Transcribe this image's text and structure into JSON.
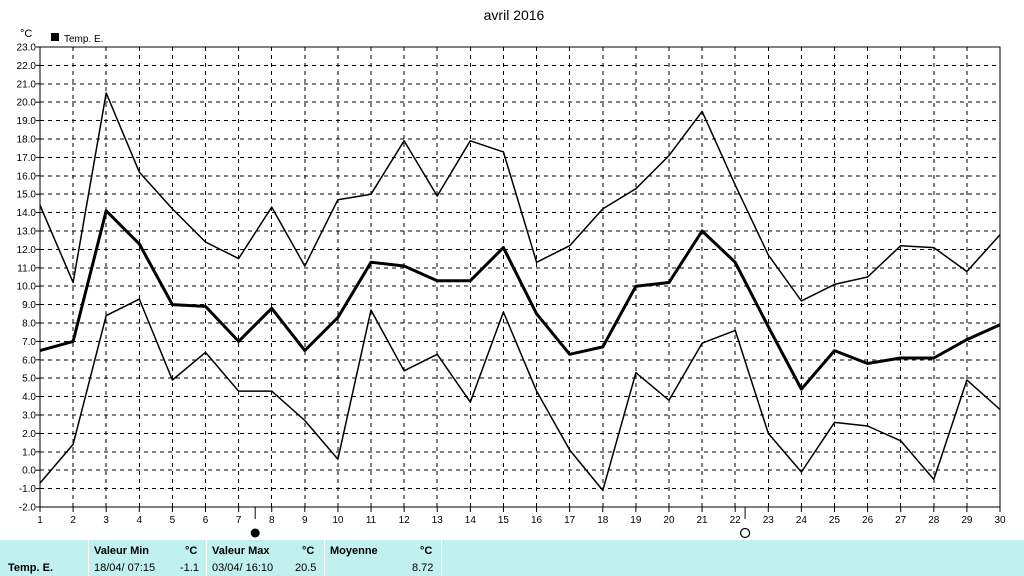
{
  "chart_data": {
    "type": "line",
    "title": "avril 2016",
    "ylabel": "°C",
    "legend": {
      "label": "Temp. E.",
      "position": "top-left"
    },
    "x": [
      1,
      2,
      3,
      4,
      5,
      6,
      7,
      8,
      9,
      10,
      11,
      12,
      13,
      14,
      15,
      16,
      17,
      18,
      19,
      20,
      21,
      22,
      23,
      24,
      25,
      26,
      27,
      28,
      29,
      30
    ],
    "xlim": [
      1,
      30
    ],
    "ylim": [
      -2,
      23
    ],
    "yticks": [
      "-2.0",
      "-1.0",
      "0.0",
      "1.0",
      "2.0",
      "3.0",
      "4.0",
      "5.0",
      "6.0",
      "7.0",
      "8.0",
      "9.0",
      "10.0",
      "11.0",
      "12.0",
      "13.0",
      "14.0",
      "15.0",
      "16.0",
      "17.0",
      "18.0",
      "19.0",
      "20.0",
      "21.0",
      "22.0",
      "23.0"
    ],
    "grid": true,
    "moon_phases": [
      {
        "day": 7.5,
        "phase": "full"
      },
      {
        "day": 22.3,
        "phase": "new"
      }
    ],
    "series": [
      {
        "role": "max",
        "values": [
          14.4,
          10.2,
          20.5,
          16.2,
          14.2,
          12.4,
          11.5,
          14.3,
          11.1,
          14.7,
          15.0,
          17.9,
          14.9,
          17.9,
          17.3,
          11.3,
          12.2,
          14.2,
          15.3,
          17.1,
          19.5,
          15.5,
          11.7,
          9.2,
          10.1,
          10.5,
          12.2,
          12.1,
          10.8,
          12.8
        ],
        "color": "#000000"
      },
      {
        "role": "mean",
        "values": [
          6.5,
          7.0,
          14.1,
          12.3,
          9.0,
          8.9,
          7.0,
          8.8,
          6.5,
          8.3,
          11.3,
          11.1,
          10.3,
          10.3,
          12.1,
          8.5,
          6.3,
          6.7,
          10.0,
          10.2,
          13.0,
          11.3,
          7.8,
          4.4,
          6.5,
          5.8,
          6.1,
          6.1,
          7.1,
          7.9
        ],
        "color": "#000000"
      },
      {
        "role": "min",
        "values": [
          -0.7,
          1.4,
          8.4,
          9.3,
          4.9,
          6.4,
          4.3,
          4.3,
          2.7,
          0.6,
          8.7,
          5.4,
          6.3,
          3.7,
          8.6,
          4.3,
          1.1,
          -1.1,
          5.3,
          3.8,
          6.9,
          7.6,
          2.0,
          -0.1,
          2.6,
          2.4,
          1.6,
          -0.5,
          4.9,
          3.3
        ],
        "color": "#000000"
      }
    ]
  },
  "footer": {
    "row_label": "Temp. E.",
    "min_header": "Valeur Min",
    "min_unit": "°C",
    "min_datetime": "18/04/  07:15",
    "min_value": "-1.1",
    "max_header": "Valeur Max",
    "max_unit": "°C",
    "max_datetime": "03/04/  16:10",
    "max_value": "20.5",
    "mean_header": "Moyenne",
    "mean_unit": "°C",
    "mean_value": "8.72"
  },
  "colors": {
    "footer_bg": "#c0f0f0",
    "grid": "#000000",
    "line": "#000000"
  }
}
